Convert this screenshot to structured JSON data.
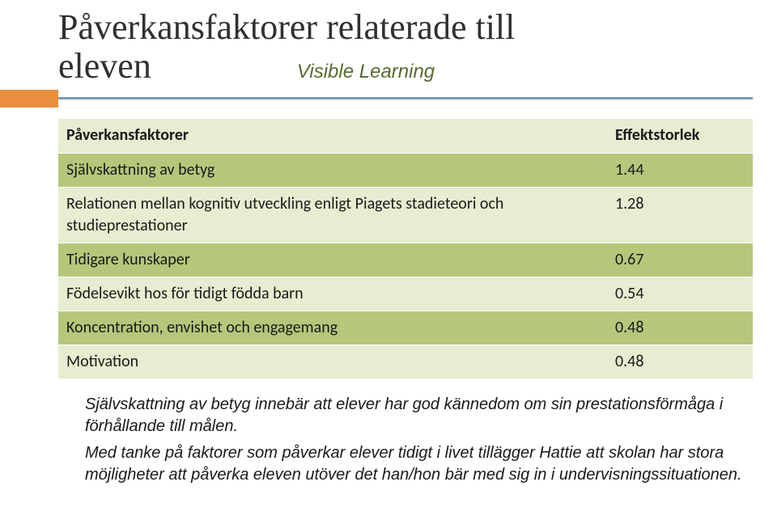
{
  "title_line1": "Påverkansfaktorer relaterade till",
  "title_line2": "eleven",
  "subtitle": "Visible Learning",
  "table": {
    "header_factor": "Påverkansfaktorer",
    "header_effect": "Effektstorlek",
    "rows": [
      {
        "factor": "Självskattning av betyg",
        "effect": "1.44"
      },
      {
        "factor": "Relationen mellan kognitiv utveckling enligt Piagets stadieteori och studieprestationer",
        "effect": "1.28"
      },
      {
        "factor": "Tidigare kunskaper",
        "effect": "0.67"
      },
      {
        "factor": "Födelsevikt hos för tidigt födda barn",
        "effect": "0.54"
      },
      {
        "factor": "Koncentration, envishet och engagemang",
        "effect": "0.48"
      },
      {
        "factor": "Motivation",
        "effect": "0.48"
      }
    ]
  },
  "paragraph1": "Självskattning av betyg innebär att elever har god kännedom om sin prestationsförmåga i förhållande till målen.",
  "paragraph2": "Med tanke på faktorer som påverkar elever tidigt i livet tillägger Hattie att skolan har stora möjligheter att påverka eleven utöver det han/hon bär med sig in i undervisningssituationen."
}
